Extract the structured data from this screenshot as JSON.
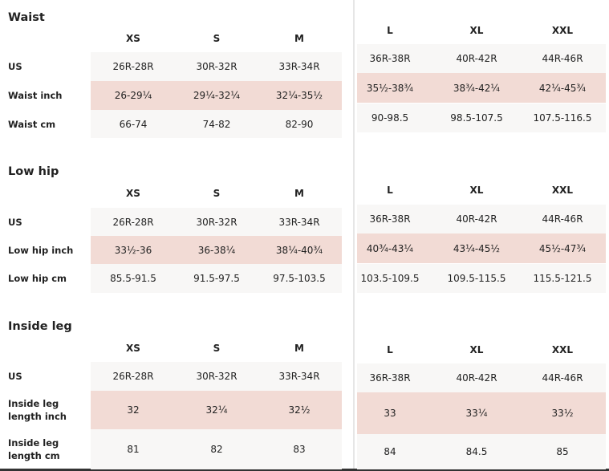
{
  "sections": [
    {
      "title": "Waist",
      "left": {
        "headers": [
          "XS",
          "S",
          "M"
        ],
        "rows": [
          {
            "label": "US",
            "cells": [
              "26R-28R",
              "30R-32R",
              "33R-34R"
            ]
          },
          {
            "label": "Waist inch",
            "cells": [
              "26-29¼",
              "29¼-32¼",
              "32¼-35½"
            ]
          },
          {
            "label": "Waist cm",
            "cells": [
              "66-74",
              "74-82",
              "82-90"
            ]
          }
        ]
      },
      "right": {
        "headers": [
          "L",
          "XL",
          "XXL"
        ],
        "rows": [
          {
            "cells": [
              "36R-38R",
              "40R-42R",
              "44R-46R"
            ]
          },
          {
            "cells": [
              "35½-38¾",
              "38¾-42¼",
              "42¼-45¾"
            ]
          },
          {
            "cells": [
              "90-98.5",
              "98.5-107.5",
              "107.5-116.5"
            ]
          }
        ]
      }
    },
    {
      "title": "Low hip",
      "left": {
        "headers": [
          "XS",
          "S",
          "M"
        ],
        "rows": [
          {
            "label": "US",
            "cells": [
              "26R-28R",
              "30R-32R",
              "33R-34R"
            ]
          },
          {
            "label": "Low hip inch",
            "cells": [
              "33½-36",
              "36-38¼",
              "38¼-40¾"
            ]
          },
          {
            "label": "Low hip cm",
            "cells": [
              "85.5-91.5",
              "91.5-97.5",
              "97.5-103.5"
            ]
          }
        ]
      },
      "right": {
        "headers": [
          "L",
          "XL",
          "XXL"
        ],
        "rows": [
          {
            "cells": [
              "36R-38R",
              "40R-42R",
              "44R-46R"
            ]
          },
          {
            "cells": [
              "40¾-43¼",
              "43¼-45½",
              "45½-47¾"
            ]
          },
          {
            "cells": [
              "103.5-109.5",
              "109.5-115.5",
              "115.5-121.5"
            ]
          }
        ]
      }
    },
    {
      "title": "Inside leg",
      "left": {
        "headers": [
          "XS",
          "S",
          "M"
        ],
        "rows": [
          {
            "label": "US",
            "cells": [
              "26R-28R",
              "30R-32R",
              "33R-34R"
            ]
          },
          {
            "label": "Inside leg length inch",
            "cells": [
              "32",
              "32¼",
              "32½"
            ]
          },
          {
            "label": "Inside leg length cm",
            "cells": [
              "81",
              "82",
              "83"
            ]
          }
        ]
      },
      "right": {
        "headers": [
          "L",
          "XL",
          "XXL"
        ],
        "rows": [
          {
            "cells": [
              "36R-38R",
              "40R-42R",
              "44R-46R"
            ]
          },
          {
            "cells": [
              "33",
              "33¼",
              "33½"
            ]
          },
          {
            "cells": [
              "84",
              "84.5",
              "85"
            ]
          }
        ]
      }
    }
  ]
}
